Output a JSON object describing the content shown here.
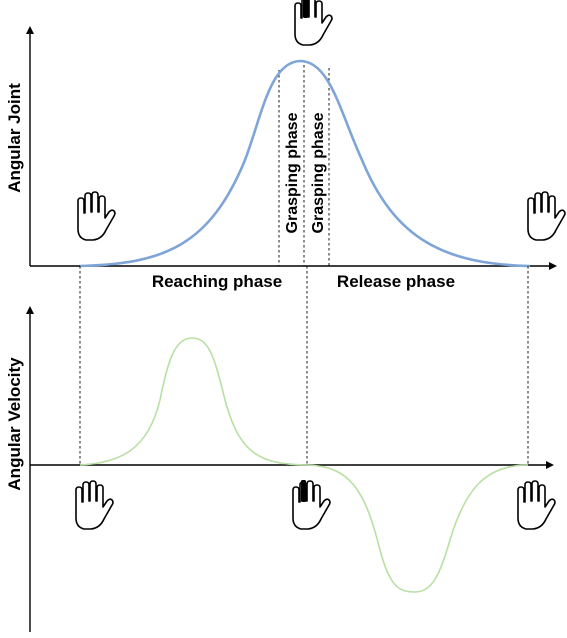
{
  "top_panel": {
    "y_label": "Angular Joint",
    "curve_color": "#7ea4d8",
    "phase_labels": {
      "reaching": "Reaching phase",
      "release": "Release phase",
      "grasping_1": "Grasping phase",
      "grasping_2": "Grasping phase"
    }
  },
  "bottom_panel": {
    "y_label": "Angular Velocity",
    "curve_color": "#b9dfa3"
  },
  "icons": [
    "open-hand-icon",
    "open-hand-icon",
    "grasping-hand-icon",
    "open-hand-icon",
    "grasping-hand-icon",
    "open-hand-icon"
  ]
}
